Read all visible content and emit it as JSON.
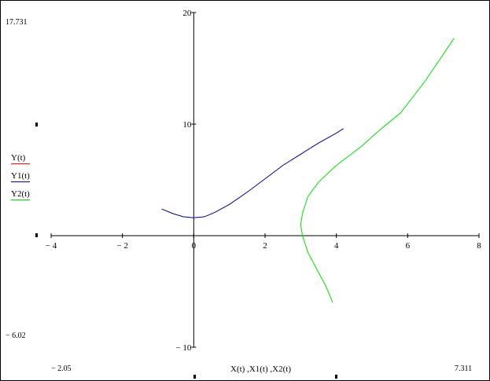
{
  "chart_data": {
    "type": "line",
    "xlabel": "X(t) ,X1(t) ,X2(t)",
    "ylabel": "",
    "xlim": [
      -4,
      8
    ],
    "ylim": [
      -10,
      20
    ],
    "x_ticks": [
      -4,
      -2,
      0,
      2,
      4,
      6,
      8
    ],
    "y_ticks": [
      -10,
      10,
      20
    ],
    "x_tick_labels": [
      "− 4",
      "− 2",
      "0",
      "2",
      "4",
      "6",
      "8"
    ],
    "y_tick_labels": [
      "− 10",
      "10",
      "20"
    ],
    "range_labels": {
      "y_max": "17.731",
      "y_min": "− 6.02",
      "x_min": "− 2.05",
      "x_max": "7.311"
    },
    "grid": false,
    "legend_position": "left",
    "series": [
      {
        "name": "Y(t)",
        "color": "#ff0000",
        "x": [],
        "y": []
      },
      {
        "name": "Y1(t)",
        "color": "#00008b",
        "x": [
          -0.9,
          -0.6,
          -0.3,
          0,
          0.3,
          0.6,
          1.0,
          1.5,
          2.0,
          2.5,
          3.0,
          3.5,
          4.0,
          4.2
        ],
        "y": [
          2.4,
          2.0,
          1.7,
          1.6,
          1.7,
          2.1,
          2.8,
          3.9,
          5.1,
          6.3,
          7.3,
          8.3,
          9.2,
          9.6
        ]
      },
      {
        "name": "Y2(t)",
        "color": "#00dd00",
        "x": [
          3.9,
          3.7,
          3.45,
          3.2,
          3.05,
          3.0,
          3.05,
          3.2,
          3.5,
          4.0,
          4.7,
          5.3,
          5.8,
          6.5,
          7.3
        ],
        "y": [
          -6.0,
          -4.5,
          -3.0,
          -1.5,
          0,
          1.0,
          2.0,
          3.5,
          4.8,
          6.3,
          8.0,
          9.7,
          11.0,
          13.9,
          17.7
        ]
      }
    ]
  }
}
